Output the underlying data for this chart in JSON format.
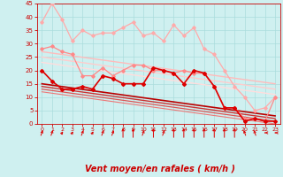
{
  "background_color": "#cff0f0",
  "grid_color": "#aadddd",
  "xlabel": "Vent moyen/en rafales ( km/h )",
  "xlabel_color": "#cc0000",
  "xlabel_fontsize": 7,
  "tick_color": "#cc0000",
  "tick_fontsize": 5,
  "xlim": [
    -0.5,
    23.5
  ],
  "ylim": [
    0,
    45
  ],
  "yticks": [
    0,
    5,
    10,
    15,
    20,
    25,
    30,
    35,
    40,
    45
  ],
  "xticks": [
    0,
    1,
    2,
    3,
    4,
    5,
    6,
    7,
    8,
    9,
    10,
    11,
    12,
    13,
    14,
    15,
    16,
    17,
    18,
    19,
    20,
    21,
    22,
    23
  ],
  "series": [
    {
      "x": [
        0,
        1,
        2,
        3,
        4,
        5,
        6,
        7,
        8,
        9,
        10,
        11,
        12,
        13,
        14,
        15,
        16,
        17,
        18,
        19,
        20,
        21,
        22,
        23
      ],
      "y": [
        38,
        45,
        39,
        31,
        35,
        33,
        34,
        34,
        36,
        38,
        33,
        34,
        31,
        37,
        33,
        36,
        28,
        26,
        20,
        14,
        10,
        5,
        6,
        10
      ],
      "color": "#ffaaaa",
      "linewidth": 0.9,
      "marker": "D",
      "markersize": 1.8,
      "zorder": 3
    },
    {
      "x": [
        0,
        1,
        2,
        3,
        4,
        5,
        6,
        7,
        8,
        9,
        10,
        11,
        12,
        13,
        14,
        15,
        16,
        17,
        18,
        19,
        20,
        21,
        22,
        23
      ],
      "y": [
        28,
        29,
        27,
        26,
        18,
        18,
        21,
        18,
        20,
        22,
        22,
        20,
        20,
        19,
        20,
        19,
        19,
        14,
        6,
        6,
        2,
        2,
        1,
        10
      ],
      "color": "#ff8888",
      "linewidth": 0.9,
      "marker": "D",
      "markersize": 1.8,
      "zorder": 4
    },
    {
      "x": [
        0,
        23
      ],
      "y": [
        27,
        15
      ],
      "color": "#ffbbbb",
      "linewidth": 1.0,
      "marker": null,
      "markersize": 0,
      "zorder": 2
    },
    {
      "x": [
        0,
        23
      ],
      "y": [
        25,
        13
      ],
      "color": "#ffcccc",
      "linewidth": 1.0,
      "marker": null,
      "markersize": 0,
      "zorder": 2
    },
    {
      "x": [
        0,
        23
      ],
      "y": [
        23,
        11
      ],
      "color": "#ffdddd",
      "linewidth": 1.0,
      "marker": null,
      "markersize": 0,
      "zorder": 2
    },
    {
      "x": [
        0,
        1,
        2,
        3,
        4,
        5,
        6,
        7,
        8,
        9,
        10,
        11,
        12,
        13,
        14,
        15,
        16,
        17,
        18,
        19,
        20,
        21,
        22,
        23
      ],
      "y": [
        20,
        16,
        13,
        13,
        14,
        13,
        18,
        17,
        15,
        15,
        15,
        21,
        20,
        19,
        15,
        20,
        19,
        14,
        6,
        6,
        1,
        2,
        1,
        1
      ],
      "color": "#dd0000",
      "linewidth": 1.2,
      "marker": "D",
      "markersize": 2.0,
      "zorder": 5
    },
    {
      "x": [
        0,
        23
      ],
      "y": [
        15,
        3
      ],
      "color": "#bb0000",
      "linewidth": 1.2,
      "marker": null,
      "markersize": 0,
      "zorder": 2
    },
    {
      "x": [
        0,
        23
      ],
      "y": [
        14,
        2
      ],
      "color": "#cc3333",
      "linewidth": 1.0,
      "marker": null,
      "markersize": 0,
      "zorder": 2
    },
    {
      "x": [
        0,
        23
      ],
      "y": [
        13,
        1
      ],
      "color": "#dd5555",
      "linewidth": 0.9,
      "marker": null,
      "markersize": 0,
      "zorder": 2
    },
    {
      "x": [
        0,
        23
      ],
      "y": [
        12,
        0
      ],
      "color": "#ee7777",
      "linewidth": 0.8,
      "marker": null,
      "markersize": 0,
      "zorder": 2
    }
  ],
  "wind_arrows_x": [
    0,
    1,
    2,
    3,
    4,
    5,
    6,
    7,
    8,
    9,
    10,
    11,
    12,
    13,
    14,
    15,
    16,
    17,
    18,
    19,
    20,
    21,
    22,
    23
  ],
  "wind_arrows_angles": [
    45,
    45,
    60,
    60,
    45,
    60,
    45,
    45,
    0,
    0,
    45,
    0,
    45,
    0,
    0,
    0,
    0,
    0,
    0,
    0,
    315,
    315,
    270,
    270
  ],
  "arrow_color": "#dd0000"
}
